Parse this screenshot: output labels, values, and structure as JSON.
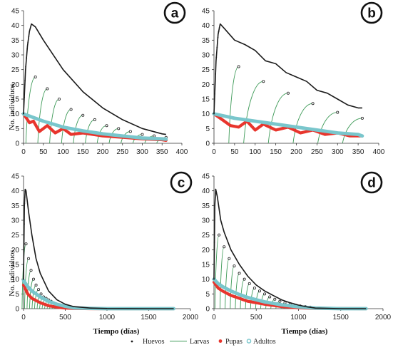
{
  "figure": {
    "legend": [
      "Huevos",
      "Larvas",
      "Pupas",
      "Adultos"
    ],
    "colors": {
      "huevos": "#1a1a1a",
      "larvas": "#3d9a57",
      "pupas": "#e8352d",
      "adultos": "#79c6cc"
    }
  },
  "chart_data": [
    {
      "panel": "a",
      "type": "line",
      "ylabel": "No. individuos",
      "xlabel": "",
      "xlim": [
        0,
        400
      ],
      "ylim": [
        0,
        45
      ],
      "xticks": [
        "0",
        "50",
        "100",
        "150",
        "200",
        "250",
        "300",
        "350",
        "400"
      ],
      "yticks": [
        "0",
        "5",
        "10",
        "15",
        "20",
        "25",
        "30",
        "35",
        "40",
        "45"
      ],
      "series": [
        {
          "name": "Huevos",
          "x": [
            0,
            5,
            10,
            15,
            20,
            30,
            50,
            100,
            150,
            200,
            250,
            300,
            350,
            360
          ],
          "y": [
            10,
            25,
            33,
            38,
            40.5,
            39.5,
            35,
            25,
            17.5,
            12,
            8,
            5,
            3.2,
            3
          ]
        },
        {
          "name": "Larvas",
          "peaks": [
            [
              30,
              22.5
            ],
            [
              60,
              18.5
            ],
            [
              90,
              15
            ],
            [
              120,
              11.5
            ],
            [
              150,
              9.5
            ],
            [
              180,
              8
            ],
            [
              210,
              6
            ],
            [
              240,
              5
            ],
            [
              270,
              4
            ],
            [
              300,
              3
            ],
            [
              330,
              2.5
            ],
            [
              360,
              2
            ]
          ]
        },
        {
          "name": "Pupas",
          "x": [
            0,
            15,
            25,
            40,
            60,
            80,
            100,
            120,
            150,
            200,
            250,
            300,
            350,
            360
          ],
          "y": [
            10,
            7,
            7.5,
            4,
            6,
            3.5,
            5,
            3,
            3.5,
            2.5,
            2,
            1.5,
            1.2,
            1
          ]
        },
        {
          "name": "Adultos",
          "x": [
            0,
            50,
            100,
            150,
            200,
            250,
            300,
            350,
            360
          ],
          "y": [
            10,
            7.5,
            5.5,
            4.2,
            3.2,
            2.5,
            1.8,
            1.5,
            1.4
          ]
        }
      ]
    },
    {
      "panel": "b",
      "type": "line",
      "ylabel": "",
      "xlabel": "",
      "xlim": [
        0,
        400
      ],
      "ylim": [
        0,
        45
      ],
      "xticks": [
        "0",
        "50",
        "100",
        "150",
        "200",
        "250",
        "300",
        "350",
        "400"
      ],
      "yticks": [
        "0",
        "5",
        "10",
        "15",
        "20",
        "25",
        "30",
        "35",
        "40",
        "45"
      ],
      "series": [
        {
          "name": "Huevos",
          "x": [
            0,
            5,
            10,
            15,
            25,
            50,
            75,
            100,
            125,
            150,
            175,
            200,
            225,
            250,
            275,
            300,
            325,
            350,
            360
          ],
          "y": [
            10,
            28,
            37,
            40.5,
            39,
            35,
            33.5,
            31.5,
            28,
            27,
            24,
            22.5,
            21,
            18,
            17,
            15,
            13,
            12,
            12
          ]
        },
        {
          "name": "Larvas",
          "peaks": [
            [
              60,
              26
            ],
            [
              120,
              21
            ],
            [
              180,
              17
            ],
            [
              240,
              13.5
            ],
            [
              300,
              10.5
            ],
            [
              360,
              8.5
            ]
          ]
        },
        {
          "name": "Pupas",
          "x": [
            0,
            20,
            40,
            60,
            80,
            100,
            120,
            150,
            180,
            210,
            240,
            270,
            300,
            330,
            360
          ],
          "y": [
            10,
            8,
            6,
            5.5,
            7.5,
            4.5,
            6.5,
            4.5,
            5.5,
            3.5,
            4.5,
            3,
            3.5,
            2.5,
            2.5
          ]
        },
        {
          "name": "Adultos",
          "x": [
            0,
            50,
            100,
            150,
            200,
            250,
            300,
            350,
            360
          ],
          "y": [
            10,
            8.5,
            7.5,
            6.5,
            5.5,
            4.5,
            3.5,
            3,
            2.5
          ]
        }
      ]
    },
    {
      "panel": "c",
      "type": "line",
      "ylabel": "No. individuos",
      "xlabel": "Tiempo (días)",
      "xlim": [
        0,
        2000
      ],
      "ylim": [
        0,
        45
      ],
      "xticks": [
        "0",
        "500",
        "1000",
        "1500",
        "2000"
      ],
      "yticks": [
        "0",
        "5",
        "10",
        "15",
        "20",
        "25",
        "30",
        "35",
        "40",
        "45"
      ],
      "series": [
        {
          "name": "Huevos",
          "x": [
            0,
            10,
            20,
            30,
            60,
            100,
            150,
            200,
            300,
            400,
            500,
            600,
            800,
            1000,
            1500,
            1800
          ],
          "y": [
            10,
            35,
            40.5,
            40,
            33,
            25,
            17,
            12,
            6,
            3,
            1.5,
            0.7,
            0.2,
            0.05,
            0,
            0
          ]
        },
        {
          "name": "Larvas",
          "peaks": [
            [
              30,
              22
            ],
            [
              60,
              17
            ],
            [
              90,
              13
            ],
            [
              120,
              10
            ],
            [
              150,
              8
            ],
            [
              180,
              6.5
            ],
            [
              210,
              5
            ],
            [
              240,
              4
            ],
            [
              270,
              3.5
            ],
            [
              300,
              3
            ],
            [
              330,
              2.5
            ],
            [
              360,
              2
            ],
            [
              390,
              1.5
            ],
            [
              420,
              1.2
            ],
            [
              450,
              1
            ],
            [
              480,
              0.8
            ]
          ]
        },
        {
          "name": "Pupas",
          "x": [
            0,
            50,
            100,
            200,
            300,
            400,
            500,
            600,
            800,
            1000,
            1800
          ],
          "y": [
            8,
            5,
            3.5,
            2,
            1,
            0.5,
            0.2,
            0.1,
            0,
            0,
            0
          ]
        },
        {
          "name": "Adultos",
          "x": [
            0,
            50,
            100,
            200,
            300,
            400,
            500,
            600,
            800,
            1000,
            1500,
            1800
          ],
          "y": [
            9.5,
            7.5,
            6,
            4,
            2.5,
            1.5,
            0.8,
            0.3,
            0.1,
            0,
            0,
            0
          ]
        }
      ]
    },
    {
      "panel": "d",
      "type": "line",
      "ylabel": "",
      "xlabel": "Tiempo (días)",
      "xlim": [
        0,
        2000
      ],
      "ylim": [
        0,
        45
      ],
      "xticks": [
        "0",
        "500",
        "1000",
        "1500",
        "2000"
      ],
      "yticks": [
        "0",
        "5",
        "10",
        "15",
        "20",
        "25",
        "30",
        "35",
        "40",
        "45"
      ],
      "series": [
        {
          "name": "Huevos",
          "x": [
            0,
            10,
            20,
            40,
            80,
            120,
            200,
            300,
            400,
            500,
            600,
            700,
            800,
            900,
            1000,
            1100,
            1200,
            1500,
            1800
          ],
          "y": [
            10,
            35,
            40.5,
            38,
            30,
            26,
            20,
            15,
            11,
            8,
            6,
            4.5,
            3,
            2,
            1.2,
            0.6,
            0.2,
            0,
            0
          ]
        },
        {
          "name": "Larvas",
          "peaks": [
            [
              60,
              25
            ],
            [
              120,
              21
            ],
            [
              180,
              17
            ],
            [
              240,
              14.5
            ],
            [
              300,
              12
            ],
            [
              360,
              10
            ],
            [
              420,
              8.5
            ],
            [
              480,
              7
            ],
            [
              540,
              6
            ],
            [
              600,
              5
            ],
            [
              660,
              4
            ],
            [
              720,
              3.2
            ],
            [
              780,
              2.5
            ],
            [
              840,
              2
            ],
            [
              900,
              1.5
            ],
            [
              960,
              1.2
            ],
            [
              1020,
              0.9
            ],
            [
              1080,
              0.7
            ],
            [
              1140,
              0.5
            ]
          ]
        },
        {
          "name": "Pupas",
          "x": [
            0,
            50,
            100,
            200,
            300,
            400,
            500,
            600,
            800,
            1000,
            1200,
            1800
          ],
          "y": [
            9,
            7,
            6,
            4.5,
            3.5,
            2.5,
            2,
            1.5,
            0.7,
            0.3,
            0.1,
            0
          ]
        },
        {
          "name": "Adultos",
          "x": [
            0,
            50,
            100,
            200,
            300,
            400,
            500,
            600,
            800,
            1000,
            1200,
            1500,
            1800
          ],
          "y": [
            10,
            8.5,
            7.5,
            6,
            4.8,
            3.8,
            3,
            2.3,
            1.3,
            0.6,
            0.2,
            0,
            0
          ]
        }
      ]
    }
  ]
}
